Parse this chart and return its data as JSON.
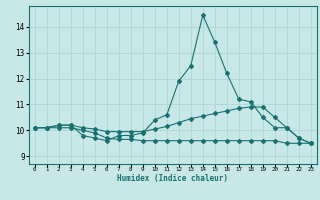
{
  "xlabel": "Humidex (Indice chaleur)",
  "bg_color": "#c8e8e8",
  "grid_color": "#b0d8d8",
  "line_color": "#1a7070",
  "x_ticks": [
    0,
    1,
    2,
    3,
    4,
    5,
    6,
    7,
    8,
    9,
    10,
    11,
    12,
    13,
    14,
    15,
    16,
    17,
    18,
    19,
    20,
    21,
    22,
    23
  ],
  "y_ticks": [
    9,
    10,
    11,
    12,
    13,
    14
  ],
  "ylim": [
    8.7,
    14.8
  ],
  "xlim": [
    -0.5,
    23.5
  ],
  "series1_y": [
    10.1,
    10.1,
    10.2,
    10.2,
    9.8,
    9.7,
    9.6,
    9.8,
    9.8,
    9.9,
    10.4,
    10.6,
    11.9,
    12.5,
    14.45,
    13.4,
    12.2,
    11.2,
    11.1,
    10.5,
    10.1,
    10.1,
    9.7,
    9.5
  ],
  "series2_y": [
    10.1,
    10.1,
    10.2,
    10.2,
    10.1,
    10.05,
    9.95,
    9.95,
    9.95,
    9.95,
    10.05,
    10.15,
    10.3,
    10.45,
    10.55,
    10.65,
    10.75,
    10.85,
    10.9,
    10.9,
    10.5,
    10.1,
    9.7,
    9.5
  ],
  "series3_y": [
    10.1,
    10.1,
    10.1,
    10.1,
    10.0,
    9.9,
    9.7,
    9.65,
    9.65,
    9.6,
    9.6,
    9.6,
    9.6,
    9.6,
    9.6,
    9.6,
    9.6,
    9.6,
    9.6,
    9.6,
    9.6,
    9.5,
    9.5,
    9.5
  ]
}
